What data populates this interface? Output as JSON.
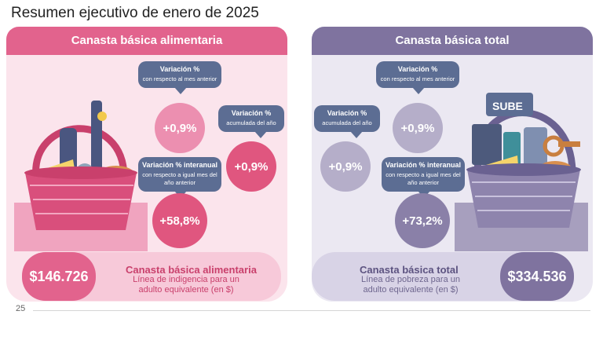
{
  "title": "Resumen ejecutivo de enero de 2025",
  "left": {
    "header": "Canasta básica alimentaria",
    "bubble_month": {
      "title": "Variación %",
      "sub": "con respecto al mes anterior"
    },
    "value_month": "+0,9%",
    "bubble_year": {
      "title": "Variación %",
      "sub": "acumulada del año"
    },
    "value_year": "+0,9%",
    "bubble_interanual": {
      "title": "Variación % interanual",
      "sub": "con respecto a igual mes del año anterior"
    },
    "value_interanual": "+58,8%",
    "price": "$146.726",
    "footer_title": "Canasta básica alimentaria",
    "footer_sub": "Línea de indigencia para un adulto equivalente (en $)"
  },
  "right": {
    "header": "Canasta básica total",
    "bubble_month": {
      "title": "Variación %",
      "sub": "con respecto al mes anterior"
    },
    "value_month": "+0,9%",
    "bubble_year": {
      "title": "Variación %",
      "sub": "acumulada del año"
    },
    "value_year": "+0,9%",
    "bubble_interanual": {
      "title": "Variación % interanual",
      "sub": "con respecto a igual mes del año anterior"
    },
    "value_interanual": "+73,2%",
    "price": "$334.536",
    "footer_title": "Canasta básica total",
    "footer_sub": "Línea de pobreza para un adulto equivalente (en $)",
    "card_text": "SUBE"
  },
  "page_number": "25",
  "colors": {
    "pink_accent": "#e2638d",
    "lavender_accent": "#7f739f",
    "bubble_blue": "#5c6d93"
  }
}
